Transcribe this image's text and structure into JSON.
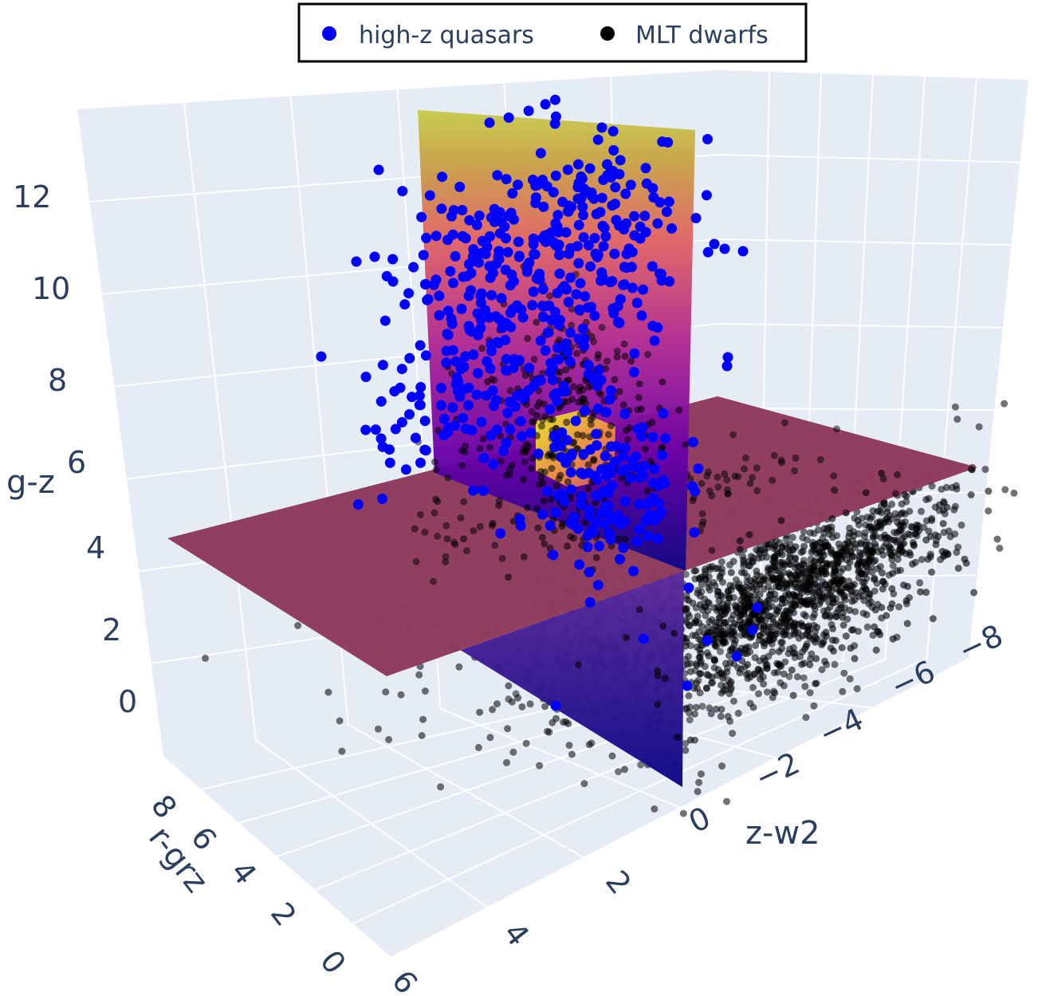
{
  "chart_data": {
    "type": "scatter",
    "series": [
      {
        "name": "high-z quasars",
        "color": "#0000ff"
      },
      {
        "name": "MLT dwarfs",
        "color": "#000000"
      }
    ],
    "axes": {
      "x": {
        "title": "z-w2",
        "ticks": [
          "0",
          "−2",
          "−4",
          "−6",
          "−8"
        ],
        "range": [
          0.5,
          -8.5
        ]
      },
      "y": {
        "title": "r-grz",
        "ticks": [
          "8",
          "6",
          "4",
          "2",
          "0"
        ],
        "range": [
          9,
          -1
        ]
      },
      "z": {
        "title": "g-z",
        "ticks": [
          "0",
          "2",
          "4",
          "6",
          "8",
          "10",
          "12"
        ],
        "range": [
          -1,
          14
        ]
      },
      "x_near_ticks": [
        "2",
        "4",
        "6"
      ]
    },
    "legend": {
      "position": "top-center",
      "bordered": true
    },
    "planes": [
      {
        "orientation": "horizontal",
        "color": "#8e3b5e"
      },
      {
        "orientation": "vertical",
        "colorscale": [
          "#0d0887",
          "#7e03a8",
          "#cc4778",
          "#f89540",
          "#f0f921"
        ]
      }
    ],
    "scene_background": "#e5ecf6"
  }
}
